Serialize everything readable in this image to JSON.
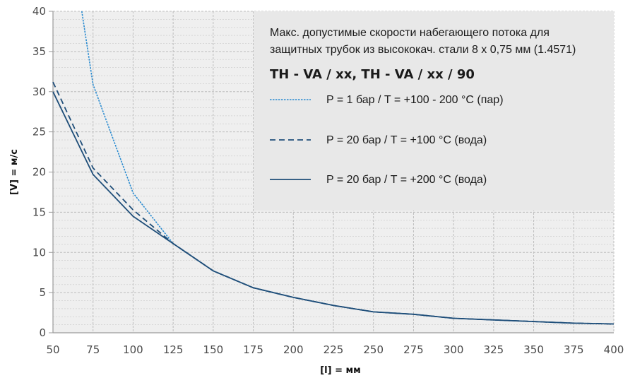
{
  "chart_data": {
    "type": "line",
    "title_lines": [
      "Макс. допустимые скорости набегающего потока для",
      "защитных трубок из высококач. стали 8 x 0,75 мм (1.4571)"
    ],
    "subtitle": "TH - VA / xx,  TH - VA / xx / 90",
    "xlabel": "[l] = мм",
    "ylabel": "[V] = м/с",
    "xlim": [
      50,
      400
    ],
    "ylim": [
      0,
      40
    ],
    "x_ticks": [
      50,
      75,
      100,
      125,
      150,
      175,
      200,
      225,
      250,
      275,
      300,
      325,
      350,
      375,
      400
    ],
    "y_ticks": [
      0,
      5,
      10,
      15,
      20,
      25,
      30,
      35,
      40
    ],
    "grid": true,
    "legend_position": "top-right",
    "series": [
      {
        "name": "P =    1 бар  /  T = +100 - 200 °C (пар)",
        "style": "dotted",
        "color": "#2a8bd0",
        "x": [
          68,
          75,
          100,
          125,
          150,
          175,
          200,
          225,
          250,
          275,
          300,
          325,
          350,
          375,
          400
        ],
        "y": [
          40,
          30.9,
          17.4,
          11.1,
          7.7,
          5.6,
          4.4,
          3.4,
          2.6,
          2.3,
          1.8,
          1.6,
          1.4,
          1.2,
          1.1
        ]
      },
      {
        "name": "P = 20 бар  /  T = +100 °C  (вода)",
        "style": "dashed",
        "color": "#1f4e79",
        "x": [
          50,
          75,
          100,
          125,
          150,
          175,
          200,
          225,
          250,
          275,
          300,
          325,
          350,
          375,
          400
        ],
        "y": [
          31.2,
          20.5,
          15.3,
          11.1,
          7.7,
          5.6,
          4.4,
          3.4,
          2.6,
          2.3,
          1.8,
          1.6,
          1.4,
          1.2,
          1.1
        ]
      },
      {
        "name": "P = 20 бар  /  T = +200 °C  (вода)",
        "style": "solid",
        "color": "#1f4e79",
        "x": [
          50,
          75,
          100,
          125,
          150,
          175,
          200,
          225,
          250,
          275,
          300,
          325,
          350,
          375,
          400
        ],
        "y": [
          30,
          19.7,
          14.5,
          11.1,
          7.7,
          5.6,
          4.4,
          3.4,
          2.6,
          2.3,
          1.8,
          1.6,
          1.4,
          1.2,
          1.1
        ]
      }
    ]
  },
  "colors": {
    "plot_background": "#efefef",
    "legend_background": "#e8e8e8",
    "grid_minor": "#cfcfcf",
    "grid_major": "#bdbdbd"
  }
}
